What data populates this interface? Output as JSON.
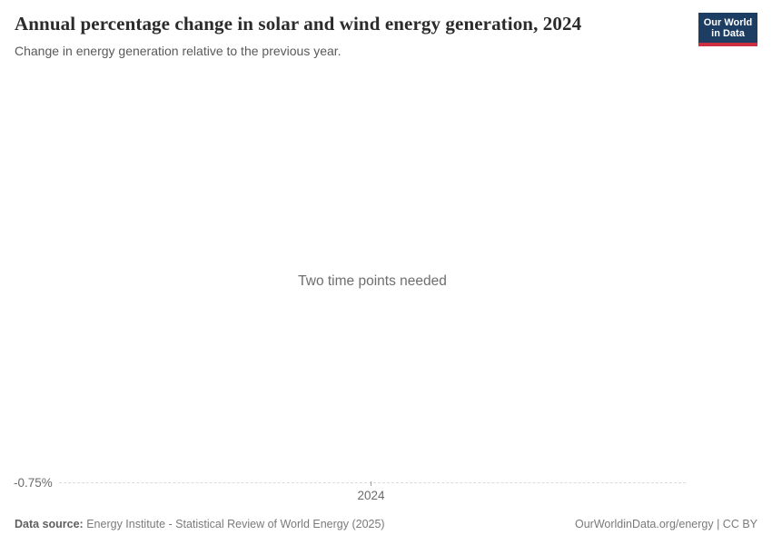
{
  "header": {
    "title": "Annual percentage change in solar and wind energy generation, 2024",
    "subtitle": "Change in energy generation relative to the previous year."
  },
  "logo": {
    "line1": "Our World",
    "line2": "in Data"
  },
  "colors": {
    "logo_bg": "#1d3d63",
    "logo_stripe": "#cc3040",
    "gridline_color": "#dcdcdc"
  },
  "chart": {
    "empty_message": "Two time points needed",
    "y_axis_label": "-0.75%",
    "x_axis_label": "2024"
  },
  "chart_data": {
    "type": "line",
    "title": "Annual percentage change in solar and wind energy generation, 2024",
    "subtitle": "Change in energy generation relative to the previous year.",
    "x": [],
    "series": [],
    "x_ticks": [
      "2024"
    ],
    "y_ticks": [
      "-0.75%"
    ],
    "empty_state_message": "Two time points needed",
    "grid": "single dashed horizontal gridline at y = -0.75%",
    "legend_position": "none"
  },
  "footer": {
    "source_label": "Data source:",
    "source_text": " Energy Institute - Statistical Review of World Energy (2025)",
    "credit": "OurWorldinData.org/energy | CC BY"
  }
}
